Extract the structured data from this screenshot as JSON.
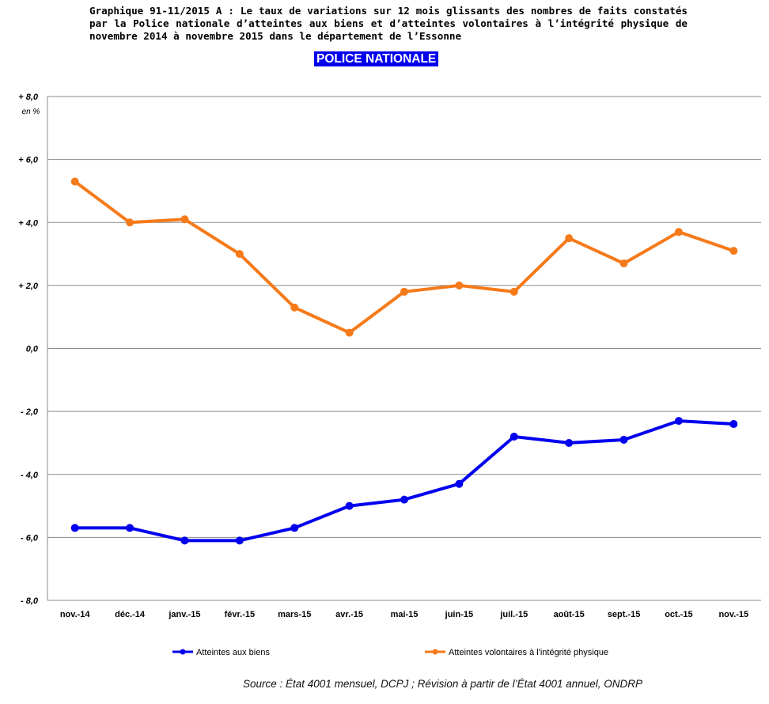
{
  "title": "Graphique 91-11/2015 A : Le taux de variations sur 12 mois glissants des nombres de faits constatés par la Police nationale d’atteintes aux biens et d’atteintes volontaires à l’intégrité physique de novembre 2014 à novembre 2015 dans le département de l’Essonne",
  "badge": "POLICE NATIONALE",
  "source": "Source : État 4001 mensuel, DCPJ ; Révision à partir de l’État 4001 annuel, ONDRP",
  "chart_data": {
    "type": "line",
    "unit_label": "en %",
    "ylim": [
      -8,
      8
    ],
    "grid": true,
    "yticks": [
      {
        "v": 8,
        "label": "+ 8,0"
      },
      {
        "v": 6,
        "label": "+ 6,0"
      },
      {
        "v": 4,
        "label": "+ 4,0"
      },
      {
        "v": 2,
        "label": "+ 2,0"
      },
      {
        "v": 0,
        "label": "0,0"
      },
      {
        "v": -2,
        "label": "- 2,0"
      },
      {
        "v": -4,
        "label": "- 4,0"
      },
      {
        "v": -6,
        "label": "- 6,0"
      },
      {
        "v": -8,
        "label": "- 8,0"
      }
    ],
    "categories": [
      "nov.-14",
      "déc.-14",
      "janv.-15",
      "févr.-15",
      "mars-15",
      "avr.-15",
      "mai-15",
      "juin-15",
      "juil.-15",
      "août-15",
      "sept.-15",
      "oct.-15",
      "nov.-15"
    ],
    "series": [
      {
        "name": "Atteintes aux biens",
        "color": "#0000ee",
        "values": [
          -5.7,
          -5.7,
          -6.1,
          -6.1,
          -5.7,
          -5.0,
          -4.8,
          -4.3,
          -2.8,
          -3.0,
          -2.9,
          -2.3,
          -2.4
        ]
      },
      {
        "name": "Atteintes volontaires à l'intégrité physique",
        "color": "#f57a1a",
        "values": [
          5.3,
          4.0,
          4.1,
          3.0,
          1.3,
          0.5,
          1.8,
          2.0,
          1.8,
          3.5,
          2.7,
          3.7,
          3.1
        ]
      }
    ],
    "legend_position": "bottom"
  }
}
